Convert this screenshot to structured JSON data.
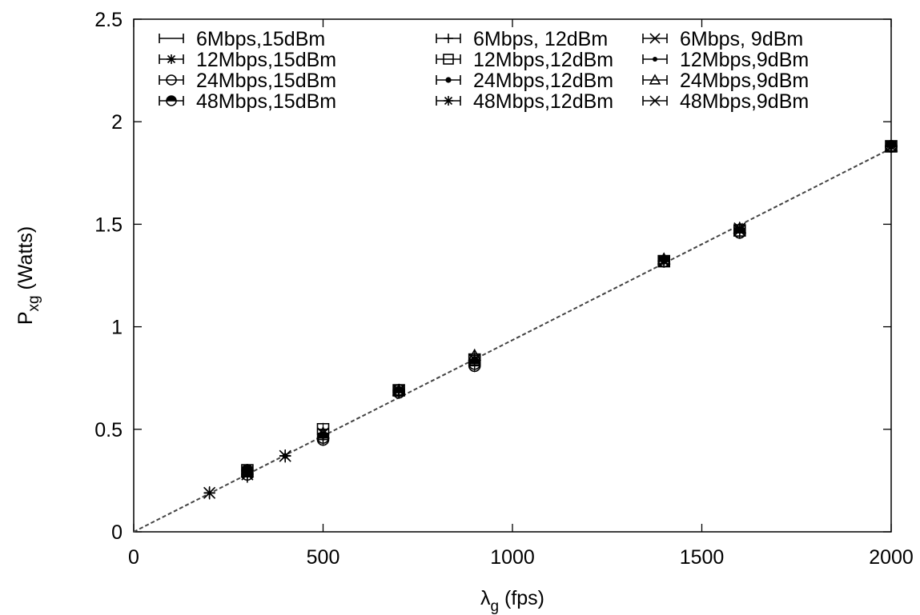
{
  "chart_data": {
    "type": "scatter",
    "title": "",
    "xlabel": {
      "main": "λ",
      "sub": "g",
      "rest": " (fps)"
    },
    "ylabel": {
      "main": "P",
      "sub": "xg",
      "rest": " (Watts)"
    },
    "xlim": [
      0,
      2000
    ],
    "ylim": [
      0,
      2.5
    ],
    "xticks": [
      0,
      500,
      1000,
      1500,
      2000
    ],
    "xtick_labels": [
      "0",
      "500",
      "1000",
      "1500",
      "2000"
    ],
    "yticks": [
      0,
      0.5,
      1,
      1.5,
      2,
      2.5
    ],
    "ytick_labels": [
      "0",
      "0.5",
      "1",
      "1.5",
      "2",
      "2.5"
    ],
    "grid": false,
    "legend_position": "top",
    "fit_line": {
      "x": [
        0,
        2000
      ],
      "y": [
        0,
        1.87
      ],
      "style": "dashed"
    },
    "series": [
      {
        "name": "6Mbps,15dBm",
        "marker": "none",
        "points": [
          [
            200,
            0.19
          ],
          [
            300,
            0.29
          ],
          [
            400,
            0.37
          ],
          [
            500,
            0.48
          ],
          [
            700,
            0.69
          ],
          [
            900,
            0.84
          ],
          [
            1400,
            1.32
          ],
          [
            1600,
            1.47
          ],
          [
            2000,
            1.88
          ]
        ]
      },
      {
        "name": "6Mbps, 12dBm",
        "marker": "plus",
        "points": [
          [
            200,
            0.19
          ],
          [
            300,
            0.27
          ],
          [
            400,
            0.37
          ],
          [
            500,
            0.47
          ],
          [
            700,
            0.68
          ],
          [
            900,
            0.84
          ],
          [
            1400,
            1.32
          ],
          [
            1600,
            1.47
          ],
          [
            2000,
            1.88
          ]
        ]
      },
      {
        "name": "6Mbps, 9dBm",
        "marker": "cross",
        "points": [
          [
            200,
            0.19
          ],
          [
            300,
            0.28
          ],
          [
            400,
            0.37
          ],
          [
            500,
            0.48
          ],
          [
            700,
            0.69
          ],
          [
            900,
            0.84
          ],
          [
            1400,
            1.32
          ],
          [
            1600,
            1.47
          ],
          [
            2000,
            1.88
          ]
        ]
      },
      {
        "name": "12Mbps,15dBm",
        "marker": "star",
        "points": [
          [
            200,
            0.19
          ],
          [
            300,
            0.29
          ],
          [
            400,
            0.37
          ],
          [
            500,
            0.48
          ],
          [
            700,
            0.69
          ],
          [
            900,
            0.84
          ],
          [
            1400,
            1.32
          ],
          [
            1600,
            1.48
          ],
          [
            2000,
            1.88
          ]
        ]
      },
      {
        "name": "12Mbps,12dBm",
        "marker": "box",
        "points": [
          [
            300,
            0.3
          ],
          [
            500,
            0.5
          ],
          [
            700,
            0.69
          ],
          [
            900,
            0.84
          ],
          [
            1400,
            1.32
          ],
          [
            1600,
            1.47
          ],
          [
            2000,
            1.88
          ]
        ]
      },
      {
        "name": "12Mbps,9dBm",
        "marker": "dot",
        "points": [
          [
            300,
            0.28
          ],
          [
            400,
            0.37
          ],
          [
            500,
            0.47
          ],
          [
            700,
            0.69
          ],
          [
            900,
            0.83
          ],
          [
            1400,
            1.32
          ],
          [
            1600,
            1.47
          ],
          [
            2000,
            1.88
          ]
        ]
      },
      {
        "name": "24Mbps,15dBm",
        "marker": "circle",
        "points": [
          [
            300,
            0.28
          ],
          [
            500,
            0.45
          ],
          [
            700,
            0.69
          ],
          [
            900,
            0.81
          ],
          [
            1400,
            1.32
          ],
          [
            1600,
            1.46
          ],
          [
            2000,
            1.88
          ]
        ]
      },
      {
        "name": "24Mbps,12dBm",
        "marker": "smalldot",
        "points": [
          [
            300,
            0.29
          ],
          [
            500,
            0.47
          ],
          [
            700,
            0.69
          ],
          [
            900,
            0.84
          ],
          [
            1400,
            1.32
          ],
          [
            1600,
            1.47
          ],
          [
            2000,
            1.88
          ]
        ]
      },
      {
        "name": "24Mbps,9dBm",
        "marker": "triangle",
        "points": [
          [
            300,
            0.29
          ],
          [
            500,
            0.48
          ],
          [
            700,
            0.69
          ],
          [
            900,
            0.86
          ],
          [
            1400,
            1.33
          ],
          [
            1600,
            1.48
          ],
          [
            2000,
            1.88
          ]
        ]
      },
      {
        "name": "48Mbps,15dBm",
        "marker": "halfcircle",
        "points": [
          [
            300,
            0.3
          ],
          [
            500,
            0.46
          ],
          [
            700,
            0.68
          ],
          [
            900,
            0.82
          ],
          [
            1400,
            1.32
          ],
          [
            1600,
            1.46
          ],
          [
            2000,
            1.88
          ]
        ]
      },
      {
        "name": "48Mbps,12dBm",
        "marker": "star",
        "points": [
          [
            300,
            0.29
          ],
          [
            500,
            0.48
          ],
          [
            700,
            0.69
          ],
          [
            900,
            0.84
          ],
          [
            1400,
            1.32
          ],
          [
            1600,
            1.47
          ],
          [
            2000,
            1.88
          ]
        ]
      },
      {
        "name": "48Mbps,9dBm",
        "marker": "cross",
        "points": [
          [
            300,
            0.29
          ],
          [
            500,
            0.48
          ],
          [
            700,
            0.69
          ],
          [
            900,
            0.84
          ],
          [
            1400,
            1.32
          ],
          [
            1600,
            1.48
          ],
          [
            2000,
            1.88
          ]
        ]
      }
    ]
  }
}
